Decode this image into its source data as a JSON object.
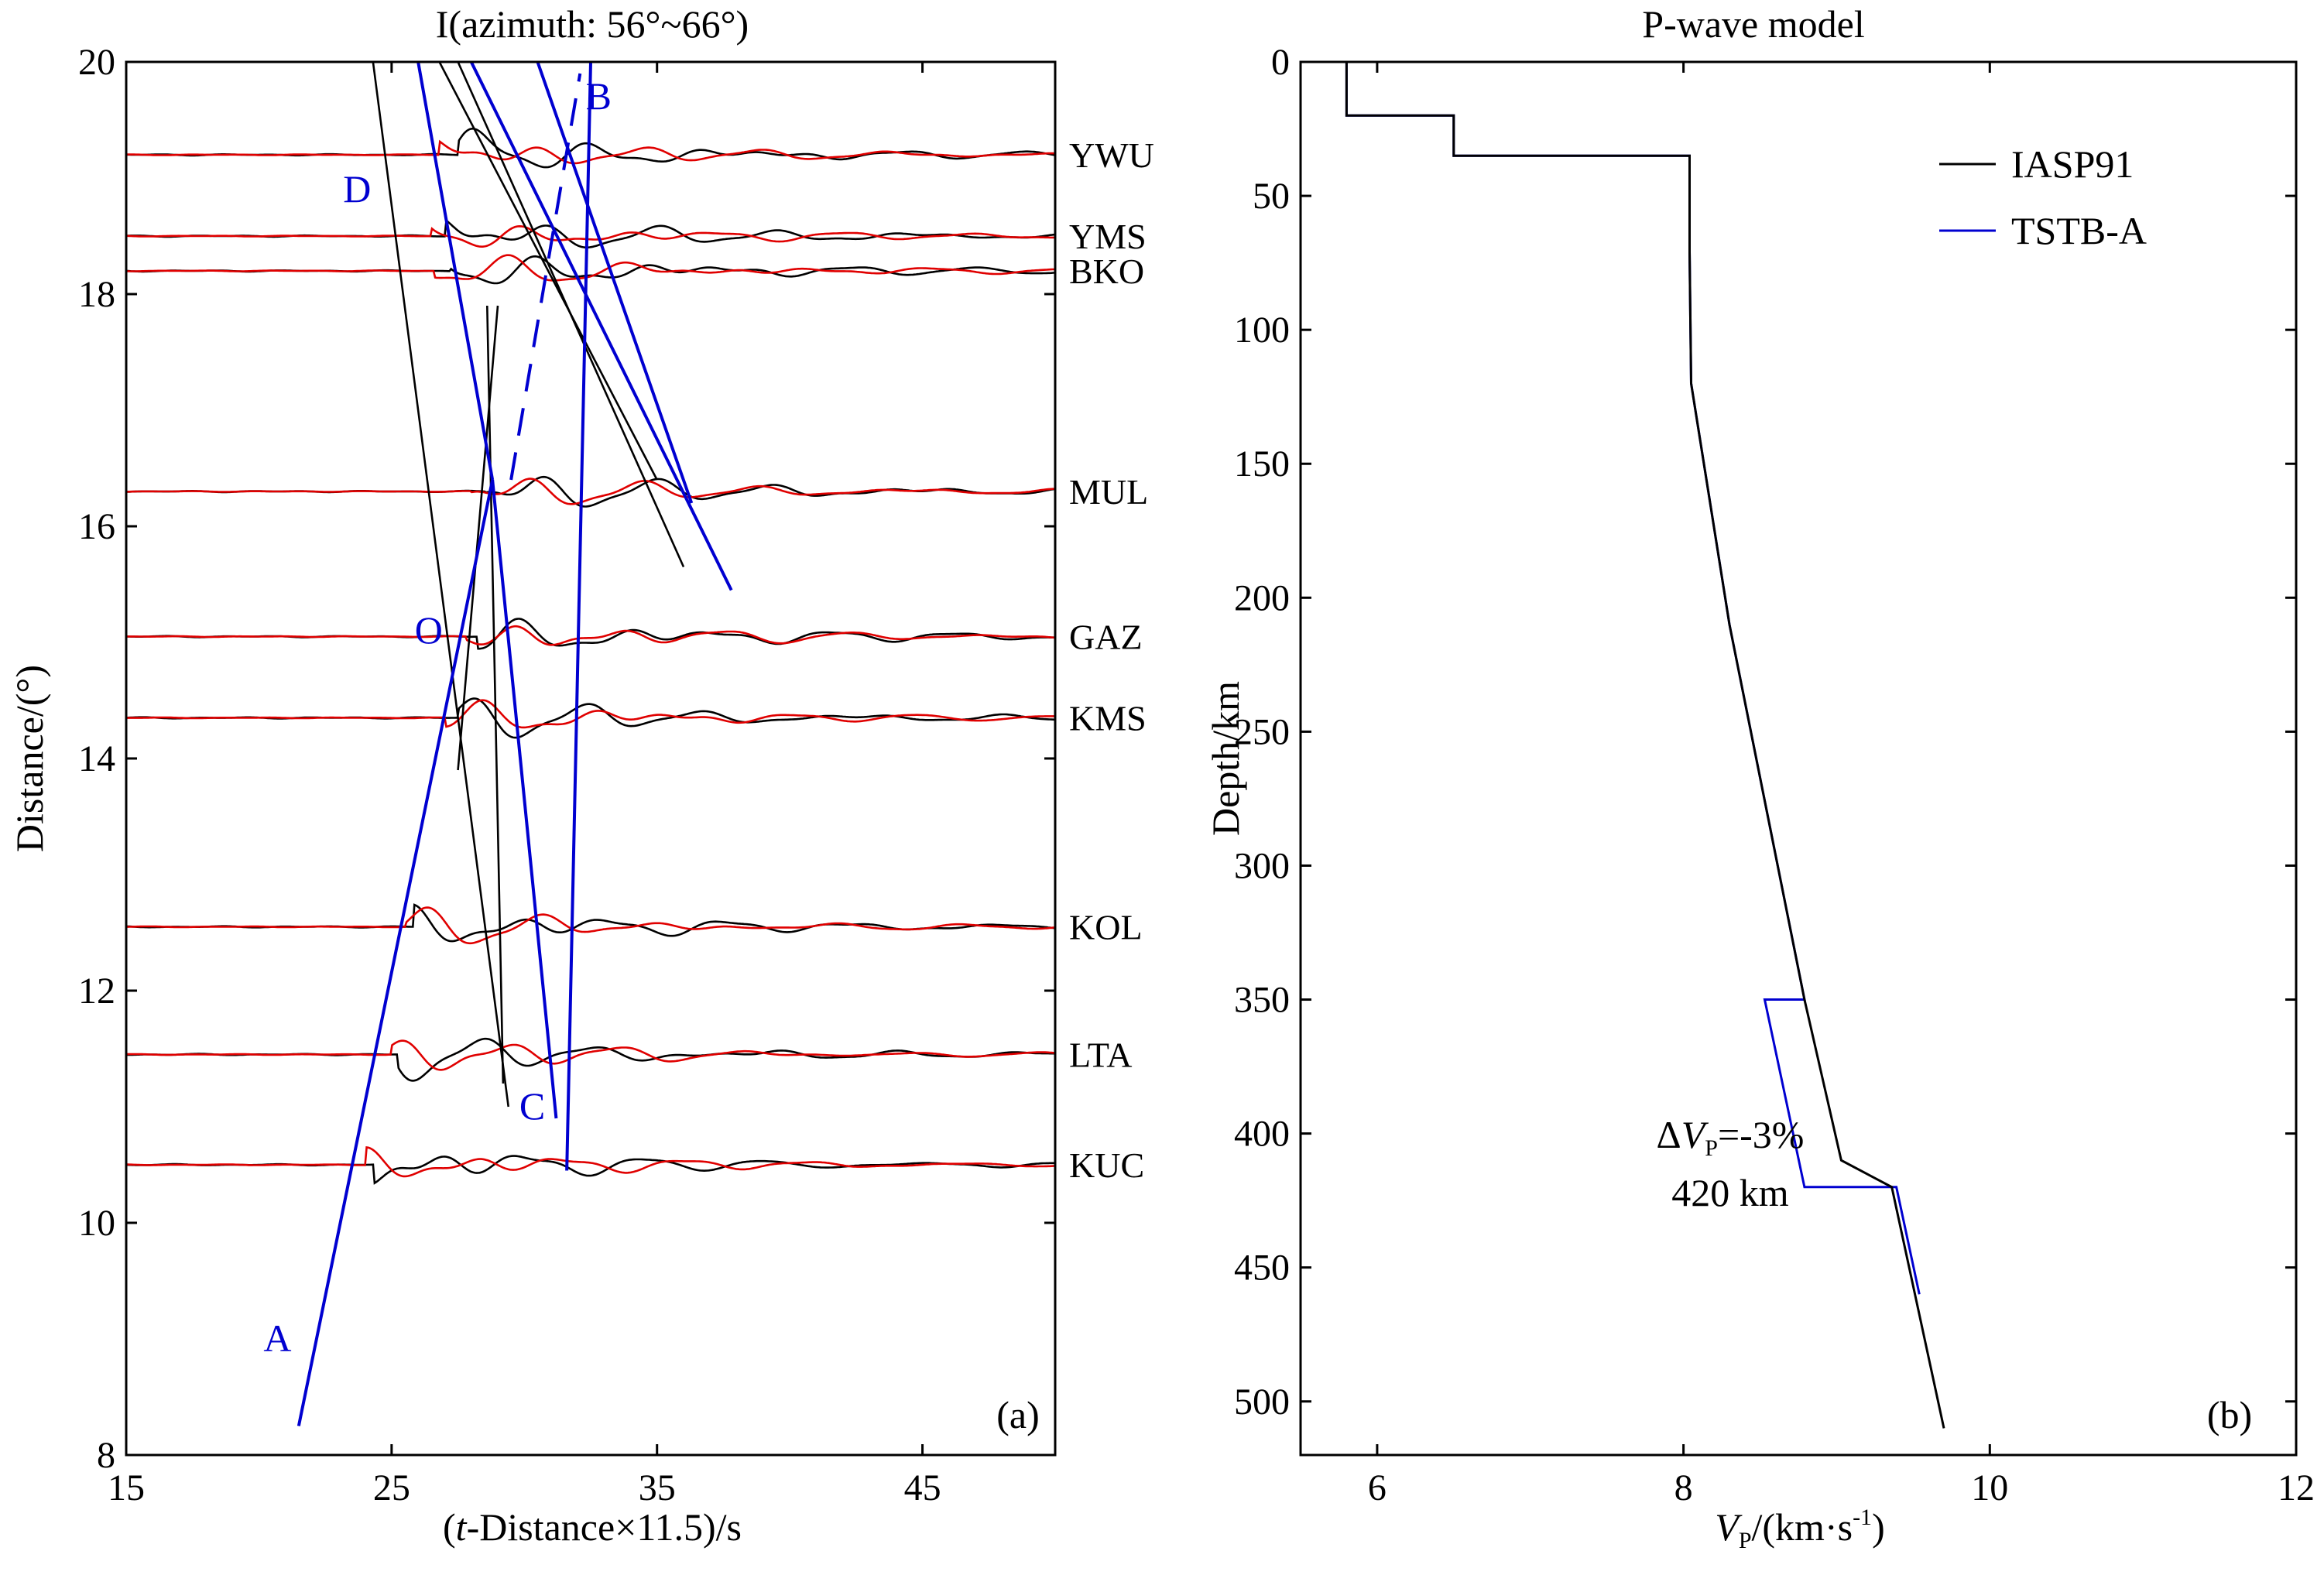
{
  "chart_data": [
    {
      "type": "line",
      "title": "I(azimuth: 56°~66°)",
      "xlabel_parts": [
        "(",
        "t",
        "-Distance×11.5)/s"
      ],
      "ylabel": "Distance/(°)",
      "xlim": [
        15,
        50
      ],
      "ylim": [
        8,
        20
      ],
      "xticks": [
        15,
        25,
        35,
        45
      ],
      "yticks": [
        8,
        10,
        12,
        14,
        16,
        18,
        20
      ],
      "panel_label": "(a)",
      "stations": [
        {
          "name": "YWU",
          "distance": 19.2,
          "onset_obs": 27.5,
          "onset_syn": 26.8
        },
        {
          "name": "YMS",
          "distance": 18.5,
          "onset_obs": 27.0,
          "onset_syn": 26.5
        },
        {
          "name": "BKO",
          "distance": 18.2,
          "onset_obs": 27.2,
          "onset_syn": 26.6
        },
        {
          "name": "MUL",
          "distance": 16.3,
          "onset_obs": 28.5,
          "onset_syn": 28.0
        },
        {
          "name": "GAZ",
          "distance": 15.05,
          "onset_obs": 28.2,
          "onset_syn": 27.8
        },
        {
          "name": "KMS",
          "distance": 14.35,
          "onset_obs": 27.5,
          "onset_syn": 27.0
        },
        {
          "name": "KOL",
          "distance": 12.55,
          "onset_obs": 25.8,
          "onset_syn": 25.5
        },
        {
          "name": "LTA",
          "distance": 11.45,
          "onset_obs": 25.2,
          "onset_syn": 25.0
        },
        {
          "name": "KUC",
          "distance": 10.5,
          "onset_obs": 24.3,
          "onset_syn": 24.0
        }
      ],
      "blue_lines": [
        {
          "points": [
            [
              21.5,
              8.25
            ],
            [
              28.8,
              16.4
            ]
          ]
        },
        {
          "points": [
            [
              28.8,
              16.4
            ],
            [
              26.0,
              20.0
            ]
          ]
        },
        {
          "points": [
            [
              28.8,
              16.4
            ],
            [
              31.2,
              10.9
            ]
          ]
        },
        {
          "points": [
            [
              31.6,
              10.45
            ],
            [
              32.5,
              20.0
            ]
          ]
        },
        {
          "points": [
            [
              29.5,
              16.4
            ],
            [
              32.1,
              19.9
            ]
          ],
          "dashed": true
        },
        {
          "points": [
            [
              28.0,
              20.0
            ],
            [
              37.8,
              15.45
            ]
          ]
        },
        {
          "points": [
            [
              30.5,
              20.0
            ],
            [
              36.3,
              16.2
            ]
          ]
        }
      ],
      "black_lines": [
        {
          "points": [
            [
              24.3,
              20.0
            ],
            [
              29.4,
              11.0
            ]
          ]
        },
        {
          "points": [
            [
              27.5,
              20.0
            ],
            [
              36.0,
              15.65
            ]
          ]
        },
        {
          "points": [
            [
              26.8,
              20.0
            ],
            [
              35.0,
              16.4
            ]
          ]
        },
        {
          "points": [
            [
              27.5,
              13.9
            ],
            [
              29.0,
              17.9
            ]
          ]
        },
        {
          "points": [
            [
              28.6,
              17.9
            ],
            [
              29.2,
              11.2
            ]
          ]
        }
      ],
      "markers": [
        {
          "label": "A",
          "x": 20.7,
          "y": 9.0
        },
        {
          "label": "B",
          "x": 32.8,
          "y": 19.7
        },
        {
          "label": "C",
          "x": 30.3,
          "y": 11.0
        },
        {
          "label": "D",
          "x": 23.7,
          "y": 18.9
        },
        {
          "label": "O",
          "x": 26.4,
          "y": 15.1
        }
      ]
    },
    {
      "type": "line",
      "title": "P-wave model",
      "xlabel_parts": [
        "V",
        "P",
        "/(km·s",
        "-1",
        ")"
      ],
      "ylabel": "Depth/km",
      "xlim": [
        5.5,
        12
      ],
      "ylim": [
        520,
        0
      ],
      "xticks": [
        6,
        8,
        10,
        12
      ],
      "yticks": [
        0,
        50,
        100,
        150,
        200,
        250,
        300,
        350,
        400,
        450,
        500
      ],
      "panel_label": "(b)",
      "series": [
        {
          "name": "IASP91",
          "color": "#000000",
          "vp": [
            5.8,
            5.8,
            6.5,
            6.5,
            8.04,
            8.04,
            8.05,
            8.3,
            8.79,
            8.79,
            9.03,
            9.03,
            9.36,
            9.7
          ],
          "depth": [
            0,
            20,
            20,
            35,
            35,
            71,
            120,
            210,
            350,
            350,
            410,
            410,
            420,
            510
          ]
        },
        {
          "name": "TSTB-A",
          "color": "#0000d0",
          "vp": [
            5.8,
            5.8,
            6.5,
            6.5,
            8.04,
            8.04,
            8.05,
            8.3,
            8.79,
            8.53,
            8.79,
            9.39,
            9.54
          ],
          "depth": [
            0,
            20,
            20,
            35,
            35,
            71,
            120,
            210,
            350,
            350,
            420,
            420,
            460
          ]
        }
      ],
      "annotation_parts": [
        "Δ",
        "V",
        "P",
        "=-3%"
      ],
      "annotation_line2": "420 km"
    }
  ]
}
